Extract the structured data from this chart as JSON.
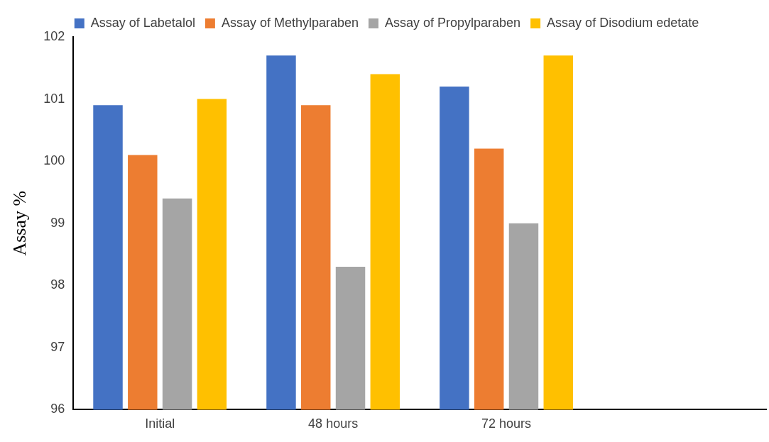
{
  "chart_data": {
    "type": "bar",
    "ylabel": "Assay %",
    "categories": [
      "Initial",
      "48 hours",
      "72 hours",
      null
    ],
    "series": [
      {
        "name": "Assay of Labetalol",
        "color": "#4472c4",
        "values": [
          100.9,
          101.7,
          101.2,
          null
        ]
      },
      {
        "name": "Assay of Methylparaben",
        "color": "#ed7d31",
        "values": [
          100.1,
          100.9,
          100.2,
          null
        ]
      },
      {
        "name": "Assay of Propylparaben",
        "color": "#a5a5a5",
        "values": [
          99.4,
          98.3,
          99.0,
          null
        ]
      },
      {
        "name": "Assay of Disodium edetate",
        "color": "#ffc000",
        "values": [
          101.0,
          101.4,
          101.7,
          null
        ]
      }
    ],
    "ylim": [
      96,
      102
    ],
    "yticks": [
      96,
      97,
      98,
      99,
      100,
      101,
      102
    ],
    "grid": false,
    "legend": "top"
  }
}
